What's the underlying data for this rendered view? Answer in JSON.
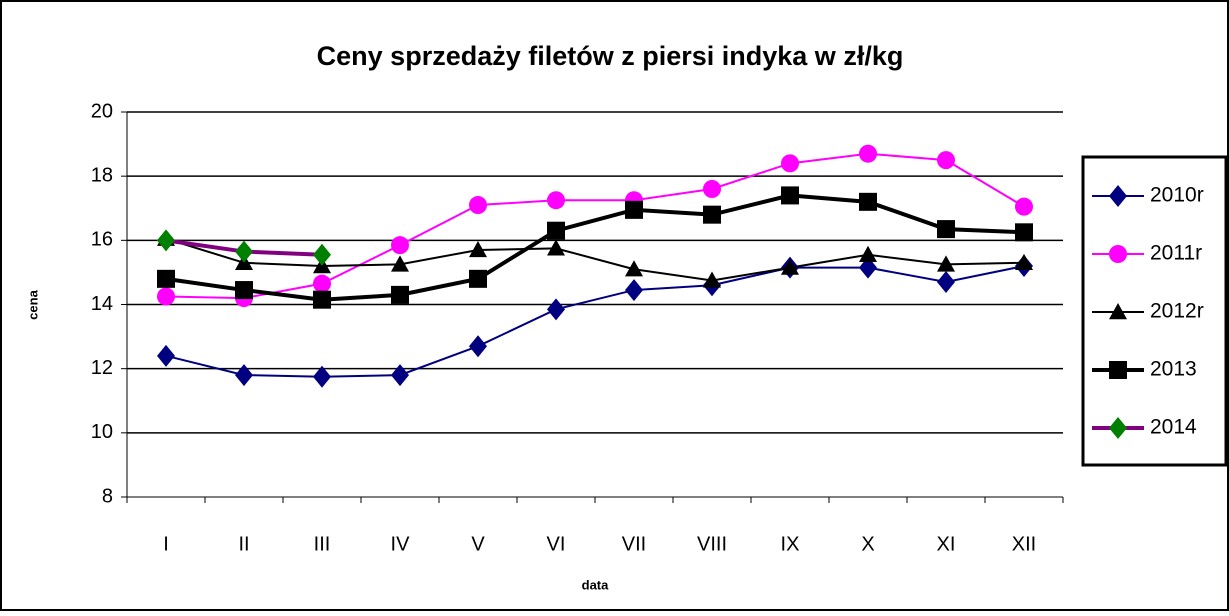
{
  "chart_data": {
    "type": "line",
    "title": "Ceny sprzedaży filetów z  piersi indyka w zł/kg",
    "x_label": "data",
    "y_label": "cena",
    "categories": [
      "I",
      "II",
      "III",
      "IV",
      "V",
      "VI",
      "VII",
      "VIII",
      "IX",
      "X",
      "XI",
      "XII"
    ],
    "ylim": [
      8,
      20
    ],
    "yticks": [
      8,
      10,
      12,
      14,
      16,
      18,
      20
    ],
    "grid": true,
    "legend": "right",
    "series": [
      {
        "name": "2010r",
        "color": "#000080",
        "marker": "diamond",
        "marker_color": "#000080",
        "line_width": 2,
        "values": [
          12.4,
          11.8,
          11.75,
          11.8,
          12.7,
          13.85,
          14.45,
          14.6,
          15.15,
          15.15,
          14.7,
          15.2
        ]
      },
      {
        "name": "2011r",
        "color": "#ff00ff",
        "marker": "circle",
        "marker_color": "#ff00ff",
        "line_width": 2,
        "values": [
          14.25,
          14.2,
          14.65,
          15.85,
          17.1,
          17.25,
          17.25,
          17.6,
          18.4,
          18.7,
          18.5,
          17.05
        ]
      },
      {
        "name": "2012r",
        "color": "#000000",
        "marker": "triangle",
        "marker_color": "#000000",
        "line_width": 2,
        "values": [
          16.05,
          15.3,
          15.2,
          15.25,
          15.7,
          15.75,
          15.1,
          14.75,
          15.15,
          15.55,
          15.25,
          15.3
        ]
      },
      {
        "name": "2013",
        "color": "#000000",
        "marker": "square",
        "marker_color": "#000000",
        "line_width": 4,
        "values": [
          14.8,
          14.45,
          14.15,
          14.3,
          14.8,
          16.3,
          16.95,
          16.8,
          17.4,
          17.2,
          16.35,
          16.25
        ]
      },
      {
        "name": "2014",
        "color": "#800080",
        "marker": "diamond",
        "marker_color": "#008000",
        "line_width": 4,
        "values": [
          16.0,
          15.65,
          15.55,
          null,
          null,
          null,
          null,
          null,
          null,
          null,
          null,
          null
        ]
      }
    ]
  }
}
